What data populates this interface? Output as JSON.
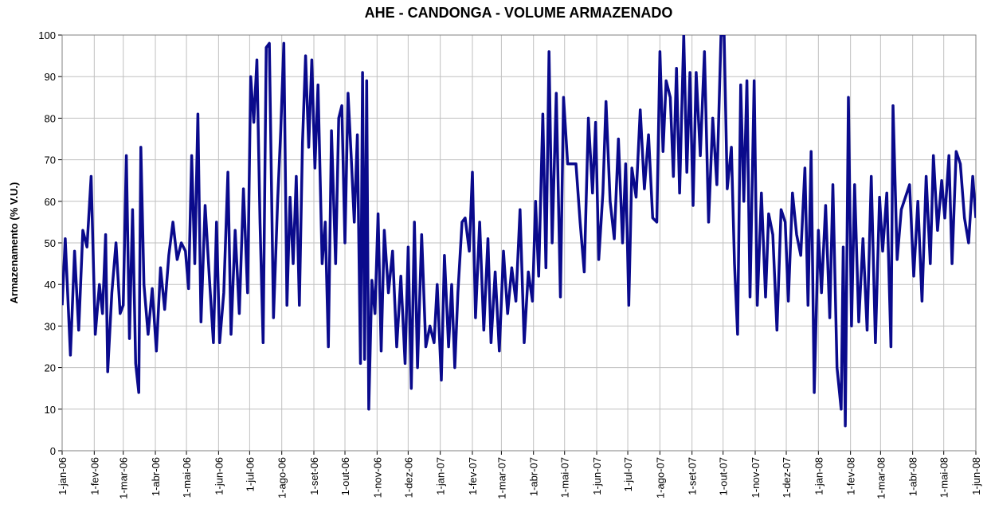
{
  "chart_data": {
    "type": "line",
    "title": "AHE - CANDONGA - VOLUME ARMAZENADO",
    "ylabel": "Armazenamento (% V.U.)",
    "xlim": [
      "2006-01-01",
      "2008-06-01"
    ],
    "xticks": [
      {
        "value": "2006-01-01",
        "label": "1-jan-06"
      },
      {
        "value": "2006-02-01",
        "label": "1-fev-06"
      },
      {
        "value": "2006-03-01",
        "label": "1-mar-06"
      },
      {
        "value": "2006-04-01",
        "label": "1-abr-06"
      },
      {
        "value": "2006-05-01",
        "label": "1-mai-06"
      },
      {
        "value": "2006-06-01",
        "label": "1-jun-06"
      },
      {
        "value": "2006-07-01",
        "label": "1-jul-06"
      },
      {
        "value": "2006-08-01",
        "label": "1-ago-06"
      },
      {
        "value": "2006-09-01",
        "label": "1-set-06"
      },
      {
        "value": "2006-10-01",
        "label": "1-out-06"
      },
      {
        "value": "2006-11-01",
        "label": "1-nov-06"
      },
      {
        "value": "2006-12-01",
        "label": "1-dez-06"
      },
      {
        "value": "2007-01-01",
        "label": "1-jan-07"
      },
      {
        "value": "2007-02-01",
        "label": "1-fev-07"
      },
      {
        "value": "2007-03-01",
        "label": "1-mar-07"
      },
      {
        "value": "2007-04-01",
        "label": "1-abr-07"
      },
      {
        "value": "2007-05-01",
        "label": "1-mai-07"
      },
      {
        "value": "2007-06-01",
        "label": "1-jun-07"
      },
      {
        "value": "2007-07-01",
        "label": "1-jul-07"
      },
      {
        "value": "2007-08-01",
        "label": "1-ago-07"
      },
      {
        "value": "2007-09-01",
        "label": "1-set-07"
      },
      {
        "value": "2007-10-01",
        "label": "1-out-07"
      },
      {
        "value": "2007-11-01",
        "label": "1-nov-07"
      },
      {
        "value": "2007-12-01",
        "label": "1-dez-07"
      },
      {
        "value": "2008-01-01",
        "label": "1-jan-08"
      },
      {
        "value": "2008-02-01",
        "label": "1-fev-08"
      },
      {
        "value": "2008-03-01",
        "label": "1-mar-08"
      },
      {
        "value": "2008-04-01",
        "label": "1-abr-08"
      },
      {
        "value": "2008-05-01",
        "label": "1-mai-08"
      },
      {
        "value": "2008-06-01",
        "label": "1-jun-08"
      }
    ],
    "ylim": [
      0,
      100
    ],
    "yticks": [
      0,
      10,
      20,
      30,
      40,
      50,
      60,
      70,
      80,
      90,
      100
    ],
    "grid": true,
    "x": [
      "2006-01-01",
      "2006-01-04",
      "2006-01-09",
      "2006-01-13",
      "2006-01-17",
      "2006-01-21",
      "2006-01-25",
      "2006-01-29",
      "2006-02-02",
      "2006-02-06",
      "2006-02-09",
      "2006-02-12",
      "2006-02-14",
      "2006-02-18",
      "2006-02-22",
      "2006-02-26",
      "2006-03-01",
      "2006-03-04",
      "2006-03-07",
      "2006-03-10",
      "2006-03-13",
      "2006-03-16",
      "2006-03-18",
      "2006-03-21",
      "2006-03-25",
      "2006-03-29",
      "2006-04-02",
      "2006-04-06",
      "2006-04-10",
      "2006-04-14",
      "2006-04-18",
      "2006-04-22",
      "2006-04-26",
      "2006-04-30",
      "2006-05-03",
      "2006-05-06",
      "2006-05-09",
      "2006-05-12",
      "2006-05-15",
      "2006-05-19",
      "2006-05-23",
      "2006-05-27",
      "2006-05-30",
      "2006-06-02",
      "2006-06-06",
      "2006-06-10",
      "2006-06-13",
      "2006-06-17",
      "2006-06-21",
      "2006-06-25",
      "2006-06-29",
      "2006-07-02",
      "2006-07-05",
      "2006-07-08",
      "2006-07-11",
      "2006-07-14",
      "2006-07-17",
      "2006-07-20",
      "2006-07-24",
      "2006-07-28",
      "2006-07-31",
      "2006-08-03",
      "2006-08-06",
      "2006-08-09",
      "2006-08-12",
      "2006-08-15",
      "2006-08-18",
      "2006-08-21",
      "2006-08-24",
      "2006-08-27",
      "2006-08-30",
      "2006-09-02",
      "2006-09-05",
      "2006-09-09",
      "2006-09-12",
      "2006-09-15",
      "2006-09-18",
      "2006-09-22",
      "2006-09-25",
      "2006-09-28",
      "2006-10-01",
      "2006-10-04",
      "2006-10-07",
      "2006-10-10",
      "2006-10-13",
      "2006-10-16",
      "2006-10-18",
      "2006-10-20",
      "2006-10-22",
      "2006-10-24",
      "2006-10-27",
      "2006-10-30",
      "2006-11-02",
      "2006-11-05",
      "2006-11-08",
      "2006-11-12",
      "2006-11-16",
      "2006-11-20",
      "2006-11-24",
      "2006-11-28",
      "2006-12-01",
      "2006-12-04",
      "2006-12-07",
      "2006-12-10",
      "2006-12-14",
      "2006-12-18",
      "2006-12-22",
      "2006-12-26",
      "2006-12-29",
      "2007-01-02",
      "2007-01-05",
      "2007-01-09",
      "2007-01-12",
      "2007-01-15",
      "2007-01-18",
      "2007-01-22",
      "2007-01-25",
      "2007-01-29",
      "2007-02-01",
      "2007-02-04",
      "2007-02-08",
      "2007-02-12",
      "2007-02-16",
      "2007-02-19",
      "2007-02-23",
      "2007-02-27",
      "2007-03-03",
      "2007-03-07",
      "2007-03-11",
      "2007-03-15",
      "2007-03-19",
      "2007-03-23",
      "2007-03-27",
      "2007-03-31",
      "2007-04-03",
      "2007-04-06",
      "2007-04-10",
      "2007-04-13",
      "2007-04-16",
      "2007-04-19",
      "2007-04-23",
      "2007-04-27",
      "2007-04-30",
      "2007-05-04",
      "2007-05-08",
      "2007-05-12",
      "2007-05-16",
      "2007-05-20",
      "2007-05-24",
      "2007-05-28",
      "2007-05-31",
      "2007-06-03",
      "2007-06-07",
      "2007-06-10",
      "2007-06-14",
      "2007-06-18",
      "2007-06-22",
      "2007-06-26",
      "2007-06-29",
      "2007-07-02",
      "2007-07-05",
      "2007-07-09",
      "2007-07-13",
      "2007-07-17",
      "2007-07-21",
      "2007-07-25",
      "2007-07-29",
      "2007-08-01",
      "2007-08-04",
      "2007-08-07",
      "2007-08-11",
      "2007-08-14",
      "2007-08-17",
      "2007-08-20",
      "2007-08-24",
      "2007-08-27",
      "2007-08-30",
      "2007-09-02",
      "2007-09-05",
      "2007-09-09",
      "2007-09-13",
      "2007-09-17",
      "2007-09-21",
      "2007-09-25",
      "2007-09-29",
      "2007-10-02",
      "2007-10-05",
      "2007-10-09",
      "2007-10-12",
      "2007-10-15",
      "2007-10-18",
      "2007-10-21",
      "2007-10-24",
      "2007-10-27",
      "2007-10-31",
      "2007-11-03",
      "2007-11-07",
      "2007-11-11",
      "2007-11-14",
      "2007-11-18",
      "2007-11-22",
      "2007-11-26",
      "2007-11-30",
      "2007-12-03",
      "2007-12-07",
      "2007-12-11",
      "2007-12-15",
      "2007-12-19",
      "2007-12-22",
      "2007-12-25",
      "2007-12-28",
      "2008-01-01",
      "2008-01-04",
      "2008-01-08",
      "2008-01-12",
      "2008-01-15",
      "2008-01-19",
      "2008-01-23",
      "2008-01-25",
      "2008-01-27",
      "2008-01-30",
      "2008-02-02",
      "2008-02-05",
      "2008-02-09",
      "2008-02-13",
      "2008-02-17",
      "2008-02-21",
      "2008-02-25",
      "2008-02-29",
      "2008-03-03",
      "2008-03-07",
      "2008-03-11",
      "2008-03-13",
      "2008-03-17",
      "2008-03-21",
      "2008-03-25",
      "2008-03-29",
      "2008-04-02",
      "2008-04-06",
      "2008-04-10",
      "2008-04-14",
      "2008-04-18",
      "2008-04-21",
      "2008-04-25",
      "2008-04-29",
      "2008-05-02",
      "2008-05-06",
      "2008-05-09",
      "2008-05-13",
      "2008-05-17",
      "2008-05-21",
      "2008-05-25",
      "2008-05-29",
      "2008-06-01"
    ],
    "series": [
      {
        "name": "Volume armazenado",
        "color": "#0a0a8c",
        "values": [
          35,
          51,
          23,
          48,
          29,
          53,
          49,
          66,
          28,
          40,
          33,
          52,
          19,
          38,
          50,
          33,
          35,
          71,
          27,
          58,
          21,
          14,
          73,
          40,
          28,
          39,
          24,
          44,
          34,
          47,
          55,
          46,
          50,
          48,
          39,
          71,
          45,
          81,
          31,
          59,
          42,
          26,
          55,
          26,
          38,
          67,
          28,
          53,
          33,
          63,
          38,
          90,
          79,
          94,
          55,
          26,
          97,
          98,
          32,
          60,
          77,
          98,
          35,
          61,
          45,
          66,
          35,
          74,
          95,
          73,
          94,
          68,
          88,
          45,
          55,
          25,
          77,
          45,
          80,
          83,
          50,
          86,
          71,
          55,
          76,
          21,
          91,
          22,
          89,
          10,
          41,
          33,
          57,
          24,
          53,
          38,
          48,
          25,
          42,
          21,
          49,
          15,
          55,
          20,
          52,
          25,
          30,
          26,
          40,
          17,
          47,
          25,
          40,
          20,
          38,
          55,
          56,
          48,
          67,
          32,
          55,
          29,
          51,
          26,
          43,
          24,
          48,
          33,
          44,
          36,
          58,
          26,
          43,
          36,
          60,
          42,
          81,
          44,
          96,
          50,
          86,
          37,
          85,
          69,
          69,
          69,
          55,
          43,
          80,
          62,
          79,
          46,
          62,
          84,
          60,
          51,
          75,
          50,
          69,
          35,
          68,
          61,
          82,
          63,
          76,
          56,
          55,
          96,
          72,
          89,
          85,
          66,
          92,
          62,
          100,
          67,
          91,
          59,
          91,
          71,
          96,
          55,
          80,
          64,
          100,
          100,
          63,
          73,
          45,
          28,
          88,
          60,
          89,
          37,
          89,
          35,
          62,
          37,
          57,
          52,
          29,
          58,
          55,
          36,
          62,
          52,
          47,
          68,
          35,
          72,
          14,
          53,
          38,
          59,
          32,
          64,
          20,
          10,
          49,
          6,
          85,
          30,
          64,
          31,
          51,
          29,
          66,
          26,
          61,
          48,
          62,
          25,
          83,
          46,
          58,
          61,
          64,
          42,
          60,
          36,
          66,
          45,
          71,
          53,
          65,
          56,
          71,
          45,
          72,
          69,
          56,
          50,
          66,
          56
        ]
      }
    ]
  }
}
